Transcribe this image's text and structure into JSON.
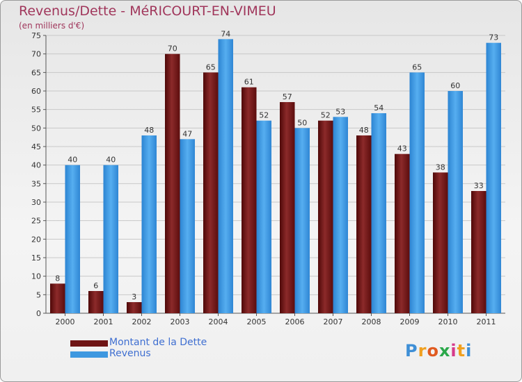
{
  "title": "Revenus/Dette - MéRICOURT-EN-VIMEU",
  "subtitle": "(en milliers d'€)",
  "logo_text": "Proxiti",
  "colors": {
    "debt": "#6e1414",
    "revenue": "#3e98e0",
    "title": "#a0365b",
    "legend_text": "#3f6fd1"
  },
  "chart_data": {
    "type": "bar",
    "categories": [
      "2000",
      "2001",
      "2002",
      "2003",
      "2004",
      "2005",
      "2006",
      "2007",
      "2008",
      "2009",
      "2010",
      "2011"
    ],
    "series": [
      {
        "name": "Montant de la Dette",
        "values": [
          8,
          6,
          3,
          70,
          65,
          61,
          57,
          52,
          48,
          43,
          38,
          33
        ]
      },
      {
        "name": "Revenus",
        "values": [
          40,
          40,
          48,
          47,
          74,
          52,
          50,
          53,
          54,
          65,
          60,
          73
        ]
      }
    ],
    "yticks": [
      0,
      5,
      10,
      15,
      20,
      25,
      30,
      35,
      40,
      45,
      50,
      55,
      60,
      65,
      70,
      75
    ],
    "ylim": [
      0,
      75
    ],
    "grid": true,
    "legend_position": "bottom-left"
  }
}
